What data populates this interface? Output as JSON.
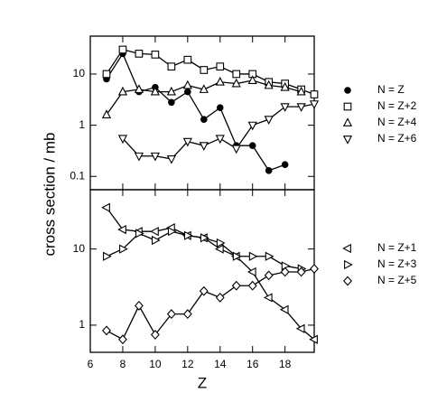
{
  "chart_data": [
    {
      "type": "line",
      "ylabel": "cross section / mb",
      "log_y": true,
      "xlim": [
        6,
        19.8
      ],
      "ylim": [
        0.055,
        55
      ],
      "yticks": [
        0.1,
        1,
        10
      ],
      "series": [
        {
          "name": "N = Z",
          "marker": "circle-filled",
          "color": "#000000",
          "x": [
            7,
            8,
            9,
            10,
            11,
            12,
            13,
            14,
            15,
            16,
            17,
            18
          ],
          "values": [
            8,
            25,
            4.5,
            5.5,
            2.8,
            4.5,
            1.3,
            2.2,
            0.4,
            0.4,
            0.13,
            0.17
          ]
        },
        {
          "name": "N = Z+2",
          "marker": "square",
          "color": "#000000",
          "x": [
            7,
            8,
            9,
            10,
            11,
            12,
            13,
            14,
            15,
            16,
            17,
            18,
            19,
            19.8
          ],
          "values": [
            10,
            30,
            25,
            24,
            14,
            19,
            12,
            14,
            10,
            10,
            7,
            6.5,
            5,
            4
          ]
        },
        {
          "name": "N = Z+4",
          "marker": "triangle-up",
          "color": "#000000",
          "x": [
            7,
            8,
            9,
            10,
            11,
            12,
            13,
            14,
            15,
            16,
            17,
            18,
            19
          ],
          "values": [
            1.6,
            4.5,
            5,
            4.5,
            4.5,
            6,
            5,
            7,
            6.5,
            7.5,
            6,
            5.5,
            4.5
          ]
        },
        {
          "name": "N = Z+6",
          "marker": "triangle-down",
          "color": "#000000",
          "x": [
            8,
            9,
            10,
            11,
            12,
            13,
            14,
            15,
            16,
            17,
            18,
            19,
            19.8
          ],
          "values": [
            0.55,
            0.25,
            0.25,
            0.22,
            0.48,
            0.4,
            0.55,
            0.35,
            1,
            1.3,
            2.3,
            2.3,
            2.6
          ]
        }
      ]
    },
    {
      "type": "line",
      "xlabel": "Z",
      "log_y": true,
      "xlim": [
        6,
        19.8
      ],
      "ylim": [
        0.44,
        60
      ],
      "xticks": [
        6,
        8,
        10,
        12,
        14,
        16,
        18
      ],
      "yticks": [
        1,
        10
      ],
      "series": [
        {
          "name": "N = Z+1",
          "marker": "triangle-left",
          "color": "#000000",
          "x": [
            7,
            8,
            9,
            10,
            11,
            12,
            13,
            14,
            15,
            16,
            17,
            18,
            19,
            19.8
          ],
          "values": [
            35,
            18,
            17,
            17,
            19,
            15,
            14,
            10,
            8,
            5,
            2.3,
            1.6,
            0.9,
            0.65
          ]
        },
        {
          "name": "N = Z+3",
          "marker": "triangle-right",
          "color": "#000000",
          "x": [
            7,
            8,
            9,
            10,
            11,
            12,
            13,
            14,
            15,
            16,
            17,
            18,
            19
          ],
          "values": [
            8,
            10,
            16,
            13,
            17,
            15,
            14,
            12,
            8,
            8,
            8,
            6,
            5.5
          ]
        },
        {
          "name": "N = Z+5",
          "marker": "diamond",
          "color": "#000000",
          "x": [
            7,
            8,
            9,
            10,
            11,
            12,
            13,
            14,
            15,
            16,
            17,
            18,
            19,
            19.8
          ],
          "values": [
            0.85,
            0.65,
            1.8,
            0.75,
            1.4,
            1.4,
            2.8,
            2.3,
            3.3,
            3.3,
            4.5,
            5,
            5,
            5.5
          ]
        }
      ]
    }
  ]
}
